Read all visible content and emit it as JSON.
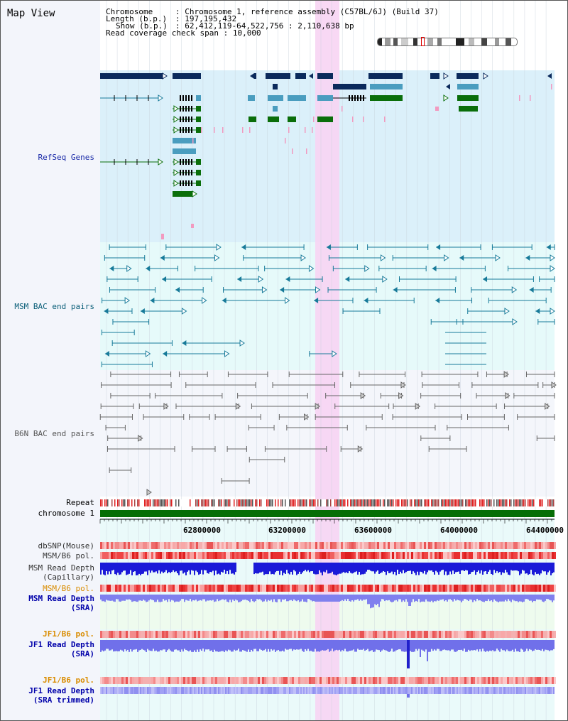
{
  "page_title": "Map View",
  "info": {
    "chromosome_label": "Chromosome",
    "chromosome_value": "Chromosome 1, reference assembly (C57BL/6J) (Build 37)",
    "length_label": "Length (b.p.)",
    "length_value": "197,195,432",
    "show_label": "Show (b.p.)",
    "show_value": "62,412,119-64,522,756 : 2,110,638 bp",
    "read_cov_label": "Read coverage check span",
    "read_cov_value": "10,000"
  },
  "tracks": {
    "refseq": "RefSeq Genes",
    "msm_bac": "MSM BAC end pairs",
    "b6n_bac": "B6N BAC end pairs",
    "repeat": "Repeat",
    "chromosome": "chromosome 1",
    "dbsnp": "dbSNP(Mouse)",
    "msm_b6_pol_1": "MSM/B6 pol.",
    "msm_read_depth_cap_1": "MSM Read Depth",
    "msm_read_depth_cap_2": "(Capillary)",
    "msm_b6_pol_2": "MSM/B6 pol.",
    "msm_read_depth_sra_1": "MSM Read Depth",
    "msm_read_depth_sra_2": "(SRA)",
    "jf1_b6_pol_1": "JF1/B6 pol.",
    "jf1_read_depth_sra_1": "JF1 Read Depth",
    "jf1_read_depth_sra_2": "(SRA)",
    "jf1_b6_pol_2": "JF1/B6 pol.",
    "jf1_read_depth_trim_1": "JF1 Read Depth",
    "jf1_read_depth_trim_2": "(SRA trimmed)"
  },
  "axis_ticks": [
    "62800000",
    "63200000",
    "63600000",
    "64000000",
    "64400000"
  ],
  "colors": {
    "refseq_bg": "#dbf0fa",
    "msm_bg": "#e6fafa",
    "b6n_bg": "#f4f6fb",
    "highlight": "#f7d4f3",
    "navy": "#0b2a5c",
    "steel": "#4a9dbf",
    "green": "#0a6e0a",
    "pink": "#f29ac0",
    "teal": "#177a99",
    "gray": "#666666",
    "orange_label": "#d98c00",
    "blue_label": "#0000aa",
    "navy_label": "#000088"
  }
}
